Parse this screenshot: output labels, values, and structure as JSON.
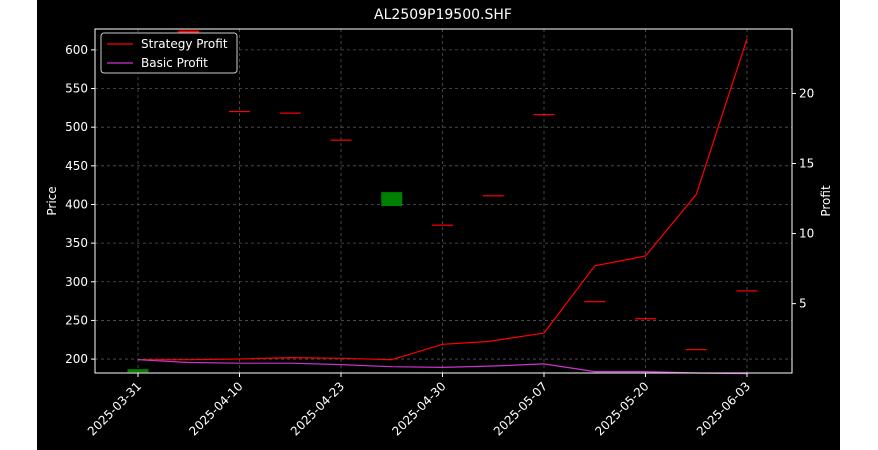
{
  "chart_data": {
    "type": "candlestick+line",
    "title": "AL2509P19500.SHF",
    "xlabel": "",
    "ylabel_left": "Price",
    "ylabel_right": "Profit",
    "ylim_left": [
      182,
      627
    ],
    "ylim_right": [
      0.05,
      24.6
    ],
    "yticks_left": [
      200,
      250,
      300,
      350,
      400,
      450,
      500,
      550,
      600
    ],
    "yticks_right": [
      5,
      10,
      15,
      20
    ],
    "x_tick_labels": [
      "2025-03-31",
      "2025-04-10",
      "2025-04-23",
      "2025-04-30",
      "2025-05-07",
      "2025-05-20",
      "2025-06-03"
    ],
    "x_tick_index": [
      0,
      2,
      4,
      6,
      8,
      10,
      12
    ],
    "grid": true,
    "legend_position": "top-left",
    "candles": [
      {
        "i": 0,
        "open": 183,
        "close": 187,
        "color": "#008000"
      },
      {
        "i": 1,
        "open": 625,
        "close": 570,
        "color": "#ff0000"
      },
      {
        "i": 2,
        "open": 521,
        "close": 521,
        "color": "#ff0000"
      },
      {
        "i": 3,
        "open": 519,
        "close": 519,
        "color": "#ff0000"
      },
      {
        "i": 4,
        "open": 484,
        "close": 484,
        "color": "#ff0000"
      },
      {
        "i": 5,
        "open": 398,
        "close": 416,
        "color": "#008000"
      },
      {
        "i": 6,
        "open": 374,
        "close": 374,
        "color": "#ff0000"
      },
      {
        "i": 7,
        "open": 412,
        "close": 412,
        "color": "#ff0000"
      },
      {
        "i": 8,
        "open": 517,
        "close": 517,
        "color": "#ff0000"
      },
      {
        "i": 9,
        "open": 275,
        "close": 275,
        "color": "#ff0000"
      },
      {
        "i": 10,
        "open": 253,
        "close": 253,
        "color": "#ff0000"
      },
      {
        "i": 11,
        "open": 213,
        "close": 213,
        "color": "#ff0000"
      },
      {
        "i": 12,
        "open": 289,
        "close": 289,
        "color": "#ff0000"
      }
    ],
    "series": [
      {
        "name": "Strategy Profit",
        "color": "#ff0000",
        "x": [
          0,
          1,
          2,
          3,
          4,
          5,
          6,
          6.9,
          8,
          9,
          10,
          11,
          12
        ],
        "values": [
          1.0,
          1.0,
          1.05,
          1.15,
          1.1,
          1.0,
          2.1,
          2.3,
          2.9,
          7.7,
          8.4,
          12.8,
          23.9
        ]
      },
      {
        "name": "Basic Profit",
        "color": "#cc33cc",
        "x": [
          0,
          1,
          2,
          3,
          4,
          5,
          6,
          7,
          8,
          9,
          10,
          11,
          12
        ],
        "values": [
          1.0,
          0.8,
          0.75,
          0.75,
          0.65,
          0.5,
          0.45,
          0.55,
          0.7,
          0.15,
          0.15,
          0.05,
          0.0
        ]
      }
    ]
  }
}
